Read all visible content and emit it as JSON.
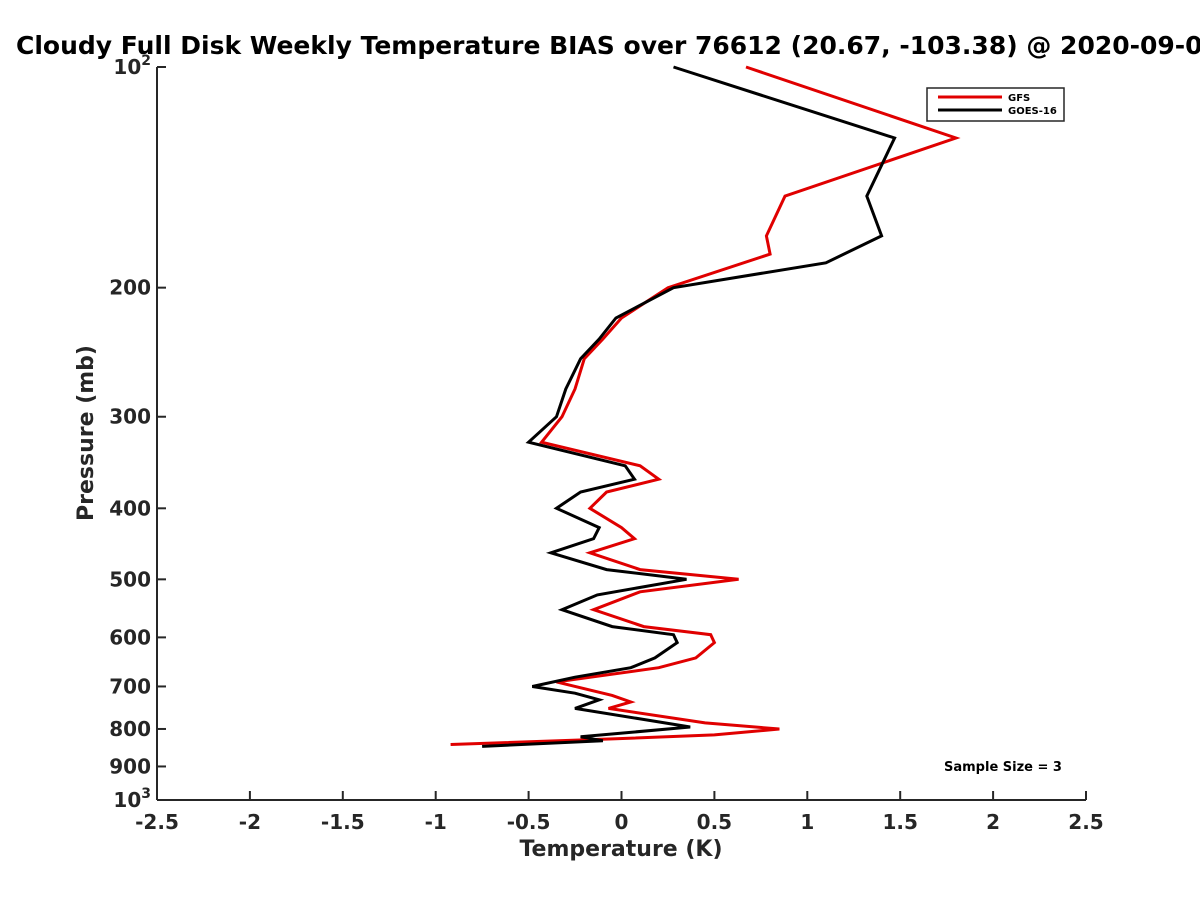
{
  "chart_data": {
    "type": "line",
    "title": "Cloudy Full Disk Weekly Temperature BIAS over 76612 (20.67, -103.38) @ 2020-09-0",
    "xlabel": "Temperature (K)",
    "ylabel": "Pressure (mb)",
    "xlim": [
      -2.5,
      2.5
    ],
    "ylim": [
      100,
      1000
    ],
    "y_scale": "log",
    "y_reversed": true,
    "x_ticks": [
      {
        "value": -2.5,
        "label": "-2.5"
      },
      {
        "value": -2,
        "label": "-2"
      },
      {
        "value": -1.5,
        "label": "-1.5"
      },
      {
        "value": -1,
        "label": "-1"
      },
      {
        "value": -0.5,
        "label": "-0.5"
      },
      {
        "value": 0,
        "label": "0"
      },
      {
        "value": 0.5,
        "label": "0.5"
      },
      {
        "value": 1,
        "label": "1"
      },
      {
        "value": 1.5,
        "label": "1.5"
      },
      {
        "value": 2,
        "label": "2"
      },
      {
        "value": 2.5,
        "label": "2.5"
      }
    ],
    "y_ticks": [
      {
        "value": 100,
        "label": "10",
        "sup": "2"
      },
      {
        "value": 200,
        "label": "200",
        "sup": ""
      },
      {
        "value": 300,
        "label": "300",
        "sup": ""
      },
      {
        "value": 400,
        "label": "400",
        "sup": ""
      },
      {
        "value": 500,
        "label": "500",
        "sup": ""
      },
      {
        "value": 600,
        "label": "600",
        "sup": ""
      },
      {
        "value": 700,
        "label": "700",
        "sup": ""
      },
      {
        "value": 800,
        "label": "800",
        "sup": ""
      },
      {
        "value": 900,
        "label": "900",
        "sup": ""
      },
      {
        "value": 1000,
        "label": "10",
        "sup": "3"
      }
    ],
    "grid": false,
    "legend_position": "top-right",
    "series": [
      {
        "name": "GFS",
        "color": "#e00000",
        "points": [
          [
            0.67,
            100
          ],
          [
            1.8,
            125
          ],
          [
            0.88,
            150
          ],
          [
            0.78,
            170
          ],
          [
            0.8,
            180
          ],
          [
            0.25,
            200
          ],
          [
            0.0,
            220
          ],
          [
            -0.1,
            235
          ],
          [
            -0.2,
            250
          ],
          [
            -0.25,
            275
          ],
          [
            -0.32,
            300
          ],
          [
            -0.43,
            325
          ],
          [
            0.1,
            350
          ],
          [
            0.2,
            365
          ],
          [
            -0.08,
            380
          ],
          [
            -0.17,
            400
          ],
          [
            0.0,
            425
          ],
          [
            0.07,
            440
          ],
          [
            -0.17,
            460
          ],
          [
            0.1,
            485
          ],
          [
            0.63,
            500
          ],
          [
            0.1,
            520
          ],
          [
            -0.15,
            550
          ],
          [
            0.12,
            580
          ],
          [
            0.48,
            595
          ],
          [
            0.5,
            610
          ],
          [
            0.4,
            640
          ],
          [
            0.2,
            660
          ],
          [
            -0.35,
            690
          ],
          [
            -0.05,
            720
          ],
          [
            0.05,
            735
          ],
          [
            -0.07,
            750
          ],
          [
            0.45,
            785
          ],
          [
            0.85,
            800
          ],
          [
            0.5,
            815
          ],
          [
            -0.03,
            825
          ],
          [
            -0.92,
            840
          ]
        ]
      },
      {
        "name": "GOES-16",
        "color": "#000000",
        "points": [
          [
            0.28,
            100
          ],
          [
            1.47,
            125
          ],
          [
            1.32,
            150
          ],
          [
            1.4,
            170
          ],
          [
            1.1,
            185
          ],
          [
            0.28,
            200
          ],
          [
            -0.03,
            220
          ],
          [
            -0.12,
            235
          ],
          [
            -0.22,
            250
          ],
          [
            -0.3,
            275
          ],
          [
            -0.35,
            300
          ],
          [
            -0.5,
            325
          ],
          [
            0.02,
            350
          ],
          [
            0.07,
            365
          ],
          [
            -0.22,
            380
          ],
          [
            -0.35,
            400
          ],
          [
            -0.12,
            425
          ],
          [
            -0.15,
            440
          ],
          [
            -0.38,
            460
          ],
          [
            -0.08,
            485
          ],
          [
            0.35,
            500
          ],
          [
            -0.13,
            525
          ],
          [
            -0.32,
            550
          ],
          [
            -0.05,
            580
          ],
          [
            0.28,
            595
          ],
          [
            0.3,
            610
          ],
          [
            0.18,
            640
          ],
          [
            0.05,
            660
          ],
          [
            -0.25,
            680
          ],
          [
            -0.48,
            700
          ],
          [
            -0.25,
            715
          ],
          [
            -0.12,
            730
          ],
          [
            -0.25,
            750
          ],
          [
            0.1,
            775
          ],
          [
            0.37,
            795
          ],
          [
            -0.22,
            820
          ],
          [
            -0.1,
            830
          ],
          [
            -0.75,
            845
          ]
        ]
      }
    ],
    "annotation": "Sample Size = 3"
  }
}
